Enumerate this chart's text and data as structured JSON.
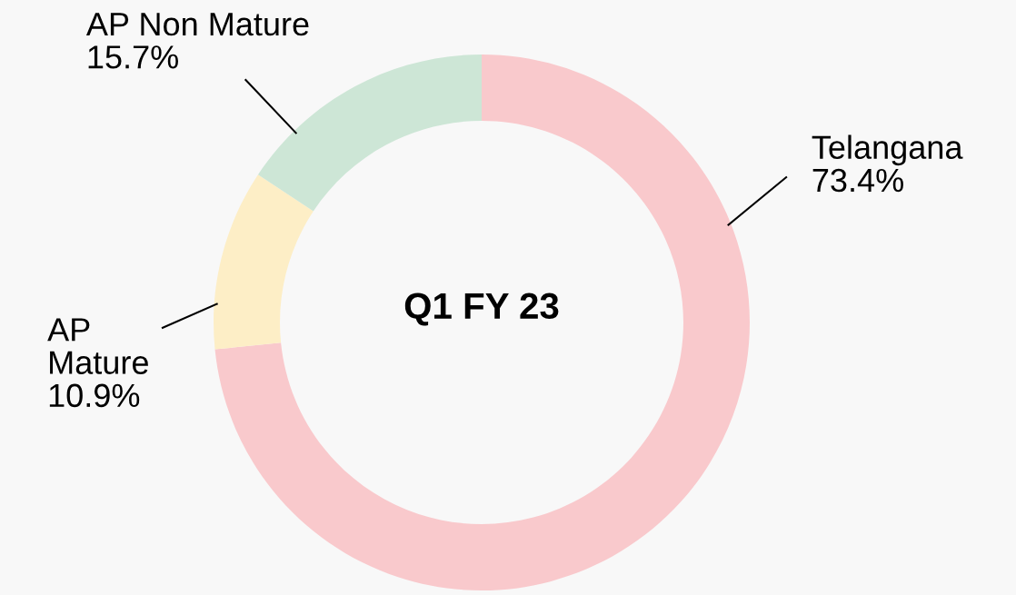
{
  "chart_data": {
    "type": "donut",
    "title": "Q1 FY 23",
    "categories": [
      "Telangana",
      "AP\nMature",
      "AP Non Mature"
    ],
    "values": [
      73.4,
      10.9,
      15.7
    ],
    "value_labels": [
      "73.4%",
      "10.9%",
      "15.7%"
    ],
    "colors": [
      "#f9c9cc",
      "#fdeec6",
      "#cde6d6"
    ]
  }
}
